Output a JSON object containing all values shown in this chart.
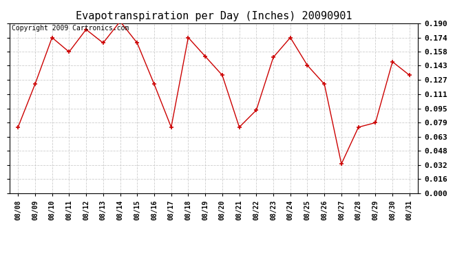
{
  "title": "Evapotranspiration per Day (Inches) 20090901",
  "copyright": "Copyright 2009 Cartronics.com",
  "dates": [
    "08/08",
    "08/09",
    "08/10",
    "08/11",
    "08/12",
    "08/13",
    "08/14",
    "08/15",
    "08/16",
    "08/17",
    "08/18",
    "08/19",
    "08/20",
    "08/21",
    "08/22",
    "08/23",
    "08/24",
    "08/25",
    "08/26",
    "08/27",
    "08/28",
    "08/29",
    "08/30",
    "08/31"
  ],
  "values": [
    0.074,
    0.122,
    0.174,
    0.158,
    0.183,
    0.168,
    0.192,
    0.168,
    0.122,
    0.074,
    0.174,
    0.153,
    0.132,
    0.074,
    0.093,
    0.152,
    0.174,
    0.143,
    0.122,
    0.033,
    0.074,
    0.079,
    0.147,
    0.132
  ],
  "ylim": [
    0.0,
    0.19
  ],
  "yticks": [
    0.0,
    0.016,
    0.032,
    0.048,
    0.063,
    0.079,
    0.095,
    0.111,
    0.127,
    0.143,
    0.158,
    0.174,
    0.19
  ],
  "line_color": "#cc0000",
  "marker": "+",
  "marker_size": 5,
  "marker_color": "#cc0000",
  "bg_color": "#ffffff",
  "grid_color": "#cccccc",
  "title_fontsize": 11,
  "copyright_fontsize": 7,
  "tick_fontsize": 8,
  "xtick_fontsize": 7
}
